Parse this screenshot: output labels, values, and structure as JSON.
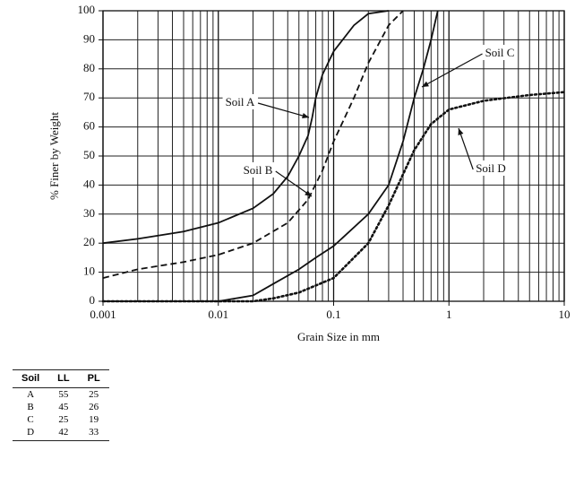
{
  "chart_data": {
    "type": "line",
    "xlabel": "Grain Size in mm",
    "ylabel": "% Finer by Weight",
    "xscale": "log",
    "xlim": [
      0.001,
      10
    ],
    "ylim": [
      0,
      100
    ],
    "xticks": [
      0.001,
      0.01,
      0.1,
      1,
      10
    ],
    "yticks": [
      0,
      10,
      20,
      30,
      40,
      50,
      60,
      70,
      80,
      90,
      100
    ],
    "grid": true,
    "series": [
      {
        "name": "Soil A",
        "color": "#111111",
        "linestyle": "solid",
        "x": [
          0.001,
          0.002,
          0.005,
          0.01,
          0.02,
          0.03,
          0.04,
          0.05,
          0.06,
          0.065,
          0.07,
          0.08,
          0.1,
          0.15,
          0.2,
          0.3
        ],
        "values": [
          20,
          21.5,
          24,
          27,
          32,
          37,
          43,
          50,
          57,
          63,
          70,
          78,
          86,
          95,
          99,
          100
        ]
      },
      {
        "name": "Soil B",
        "color": "#111111",
        "linestyle": "dashed",
        "x": [
          0.001,
          0.002,
          0.005,
          0.01,
          0.02,
          0.04,
          0.06,
          0.08,
          0.1,
          0.15,
          0.2,
          0.3,
          0.4
        ],
        "values": [
          8,
          11,
          13.5,
          16,
          20,
          27,
          35,
          45,
          55,
          70,
          82,
          95,
          100
        ]
      },
      {
        "name": "Soil C",
        "color": "#111111",
        "linestyle": "solid",
        "x": [
          0.001,
          0.01,
          0.02,
          0.03,
          0.05,
          0.07,
          0.1,
          0.2,
          0.3,
          0.4,
          0.5,
          0.6,
          0.7,
          0.8
        ],
        "values": [
          0,
          0,
          2,
          6,
          11,
          15,
          19,
          30,
          40,
          55,
          70,
          80,
          90,
          100
        ]
      },
      {
        "name": "Soil D",
        "color": "#111111",
        "linestyle": "dotted",
        "x": [
          0.001,
          0.02,
          0.03,
          0.05,
          0.1,
          0.2,
          0.3,
          0.5,
          0.7,
          1,
          2,
          5,
          10
        ],
        "values": [
          0,
          0,
          1,
          3,
          8,
          20,
          33,
          52,
          61,
          66,
          69,
          71,
          72
        ]
      }
    ]
  },
  "table": {
    "header": [
      "Soil",
      "LL",
      "PL"
    ],
    "rows": [
      [
        "A",
        "55",
        "25"
      ],
      [
        "B",
        "45",
        "26"
      ],
      [
        "C",
        "25",
        "19"
      ],
      [
        "D",
        "42",
        "33"
      ]
    ]
  }
}
